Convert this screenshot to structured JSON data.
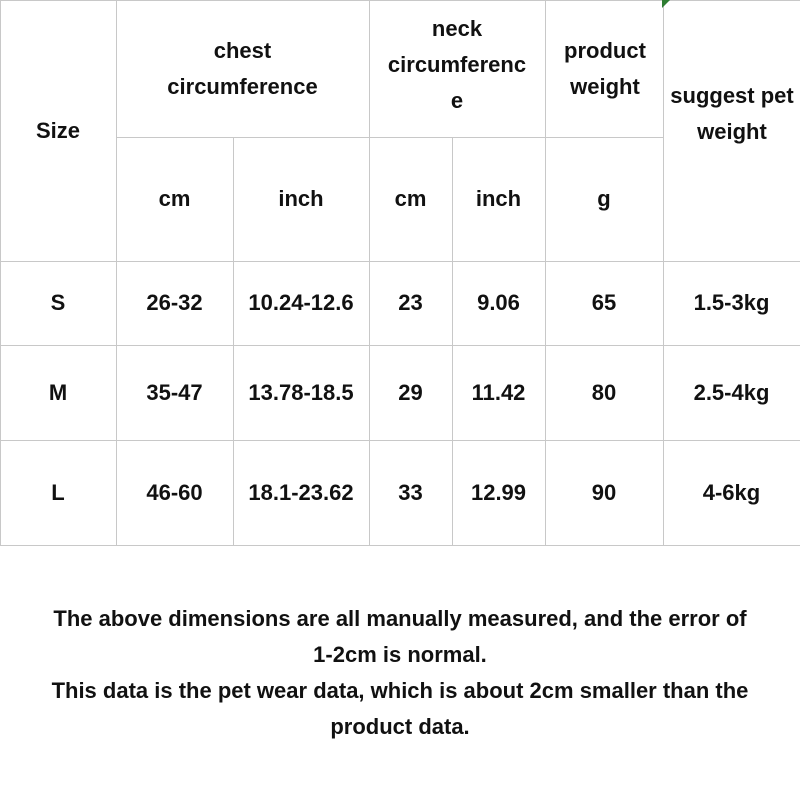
{
  "headers": {
    "size": "Size",
    "chest": "chest circumference",
    "neck_line1": "neck",
    "neck_line2": "circumferenc",
    "neck_line3": "e",
    "product_weight": "product weight",
    "suggest": "suggest pet weight",
    "units": [
      "cm",
      "inch",
      "cm",
      "inch",
      "g"
    ]
  },
  "rows": [
    {
      "size": "S",
      "chest_cm": "26-32",
      "chest_inch": "10.24-12.6",
      "neck_cm": "23",
      "neck_inch": "9.06",
      "weight_g": "65",
      "pet_weight": "1.5-3kg"
    },
    {
      "size": "M",
      "chest_cm": "35-47",
      "chest_inch": "13.78-18.5",
      "neck_cm": "29",
      "neck_inch": "11.42",
      "weight_g": "80",
      "pet_weight": "2.5-4kg"
    },
    {
      "size": "L",
      "chest_cm": "46-60",
      "chest_inch": "18.1-23.62",
      "neck_cm": "33",
      "neck_inch": "12.99",
      "weight_g": "90",
      "pet_weight": "4-6kg"
    }
  ],
  "notes": {
    "line1": "The above dimensions are all manually measured, and the error of",
    "line2": "1-2cm is normal.",
    "line3": "This data is the pet wear data, which is about 2cm smaller than the",
    "line4": "product data."
  },
  "colors": {
    "grid": "#c8c8c8",
    "corner_marker": "#2e7d32"
  }
}
